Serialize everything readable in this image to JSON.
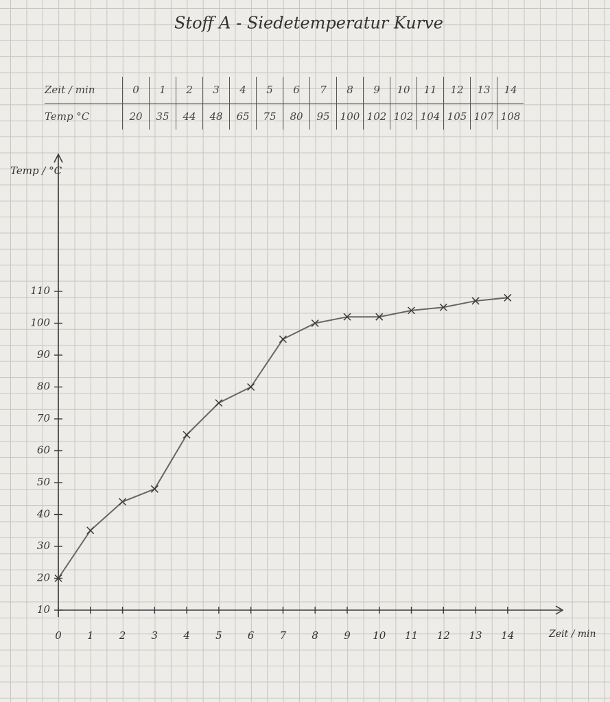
{
  "chart_data": {
    "type": "line",
    "title": "Stoff A  -  Siedetemperatur Kurve",
    "table_row_labels": [
      "Zeit / min",
      "Temp °C"
    ],
    "ylabel": "Temp / °C",
    "xlabel": "Zeit / min",
    "x": [
      0,
      1,
      2,
      3,
      4,
      5,
      6,
      7,
      8,
      9,
      10,
      11,
      12,
      13,
      14
    ],
    "values": [
      20,
      35,
      44,
      48,
      65,
      75,
      80,
      95,
      100,
      102,
      102,
      104,
      105,
      107,
      108
    ],
    "color": "#3a3a3a",
    "xlim": [
      0,
      15.5
    ],
    "ylim": [
      10,
      150
    ],
    "xticks": [
      0,
      1,
      2,
      3,
      4,
      5,
      6,
      7,
      8,
      9,
      10,
      11,
      12,
      13,
      14
    ],
    "yticks": [
      10,
      20,
      30,
      40,
      50,
      60,
      70,
      80,
      90,
      100,
      110
    ]
  }
}
